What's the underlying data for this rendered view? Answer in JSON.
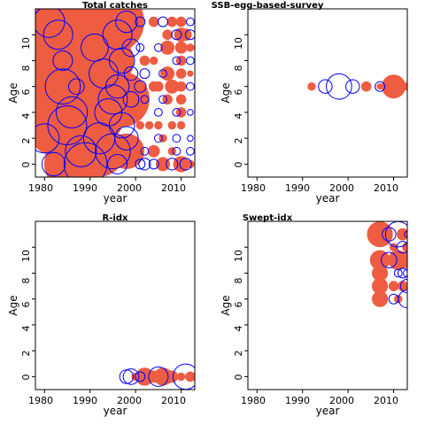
{
  "chart_data": [
    {
      "type": "scatter",
      "title": "Total catches",
      "xlabel": "year",
      "ylabel": "Age",
      "xlim": [
        1978,
        2013
      ],
      "ylim": [
        -1,
        12
      ],
      "xticks": [
        "1980",
        "1990",
        "2000",
        "2010"
      ],
      "yticks": [
        "0",
        "2",
        "4",
        "6",
        "8",
        "10"
      ],
      "marker_style": "bubble size = residual magnitude; red filled = positive, blue open = negative",
      "series": [
        {
          "name": "positive",
          "color": "#ee5c42",
          "filled": true,
          "points": [
            {
              "x": 1982,
              "y": 11,
              "r": 3.6
            },
            {
              "x": 1986,
              "y": 10,
              "r": 4.2
            },
            {
              "x": 1989,
              "y": 8,
              "r": 4.2
            },
            {
              "x": 1985,
              "y": 6,
              "r": 3.8
            },
            {
              "x": 1983,
              "y": 3,
              "r": 3.2
            },
            {
              "x": 1990,
              "y": 4,
              "r": 3.6
            },
            {
              "x": 1986,
              "y": 0,
              "r": 2.8
            },
            {
              "x": 1995,
              "y": 11,
              "r": 3.2
            },
            {
              "x": 1994,
              "y": 8,
              "r": 2.6
            },
            {
              "x": 1997,
              "y": 5,
              "r": 2.8
            },
            {
              "x": 1992,
              "y": 1,
              "r": 2.6
            },
            {
              "x": 1980,
              "y": 9,
              "r": 2.8
            },
            {
              "x": 1998,
              "y": 1,
              "r": 1.8
            },
            {
              "x": 2004,
              "y": 11,
              "r": 0.5
            },
            {
              "x": 2004,
              "y": 8,
              "r": 0.4
            },
            {
              "x": 2002,
              "y": 8,
              "r": 0.5
            },
            {
              "x": 2004,
              "y": 6,
              "r": 0.5
            },
            {
              "x": 2005,
              "y": 6,
              "r": 0.5
            },
            {
              "x": 2001,
              "y": 3,
              "r": 0.4
            },
            {
              "x": 2003,
              "y": 3,
              "r": 0.4
            },
            {
              "x": 2005,
              "y": 3,
              "r": 0.4
            },
            {
              "x": 2004,
              "y": 1,
              "r": 0.6
            },
            {
              "x": 2006,
              "y": 0,
              "r": 0.7
            },
            {
              "x": 2008,
              "y": 11,
              "r": 0.5
            },
            {
              "x": 2007,
              "y": 10,
              "r": 0.5
            },
            {
              "x": 2007,
              "y": 9,
              "r": 0.7
            },
            {
              "x": 2007,
              "y": 7,
              "r": 0.7
            },
            {
              "x": 2008,
              "y": 6,
              "r": 0.7
            },
            {
              "x": 2007,
              "y": 5,
              "r": 0.5
            },
            {
              "x": 2008,
              "y": 3,
              "r": 0.4
            },
            {
              "x": 2006,
              "y": 2,
              "r": 0.4
            },
            {
              "x": 2008,
              "y": 1,
              "r": 0.4
            },
            {
              "x": 2010,
              "y": 11,
              "r": 0.5
            },
            {
              "x": 2010,
              "y": 10,
              "r": 0.7
            },
            {
              "x": 2011,
              "y": 10,
              "r": 0.6
            },
            {
              "x": 2010,
              "y": 9,
              "r": 0.6
            },
            {
              "x": 2010,
              "y": 8,
              "r": 0.5
            },
            {
              "x": 2010,
              "y": 7,
              "r": 0.5
            },
            {
              "x": 2010,
              "y": 6,
              "r": 0.5
            },
            {
              "x": 2010,
              "y": 5,
              "r": 0.5
            },
            {
              "x": 2010,
              "y": 4,
              "r": 0.5
            },
            {
              "x": 2010,
              "y": 3,
              "r": 0.4
            },
            {
              "x": 2010,
              "y": 0,
              "r": 0.8
            },
            {
              "x": 2012,
              "y": 0,
              "r": 0.4
            },
            {
              "x": 2012,
              "y": 9,
              "r": 0.4
            },
            {
              "x": 2012,
              "y": 7,
              "r": 0.3
            }
          ]
        },
        {
          "name": "negative",
          "color": "#0000ff",
          "filled": false,
          "points": [
            {
              "x": 1981,
              "y": 11,
              "r": 1.6
            },
            {
              "x": 1983,
              "y": 10,
              "r": 1.5
            },
            {
              "x": 1984,
              "y": 6,
              "r": 1.8
            },
            {
              "x": 1980,
              "y": 2,
              "r": 1.5
            },
            {
              "x": 1985,
              "y": 3,
              "r": 2.0
            },
            {
              "x": 1988,
              "y": 1,
              "r": 1.6
            },
            {
              "x": 1989,
              "y": 0,
              "r": 2.2
            },
            {
              "x": 1986,
              "y": 4,
              "r": 1.6
            },
            {
              "x": 1982,
              "y": 0,
              "r": 1.2
            },
            {
              "x": 1984,
              "y": 8,
              "r": 1.0
            },
            {
              "x": 1987,
              "y": 6,
              "r": 0.8
            },
            {
              "x": 1992,
              "y": 2,
              "r": 1.6
            },
            {
              "x": 1994,
              "y": 4,
              "r": 1.4
            },
            {
              "x": 1991,
              "y": 9,
              "r": 1.4
            },
            {
              "x": 1993,
              "y": 7,
              "r": 1.5
            },
            {
              "x": 1995,
              "y": 5,
              "r": 1.5
            },
            {
              "x": 1995,
              "y": 1,
              "r": 1.8
            },
            {
              "x": 1996,
              "y": 10,
              "r": 1.5
            },
            {
              "x": 1997,
              "y": 8,
              "r": 1.3
            },
            {
              "x": 1996,
              "y": 6,
              "r": 1.2
            },
            {
              "x": 1997,
              "y": 3,
              "r": 1.3
            },
            {
              "x": 1998,
              "y": 11,
              "r": 1.1
            },
            {
              "x": 1998,
              "y": 2,
              "r": 1.2
            },
            {
              "x": 1996,
              "y": 0,
              "r": 1.0
            },
            {
              "x": 1999,
              "y": 5,
              "r": 0.8
            },
            {
              "x": 1999,
              "y": 9,
              "r": 0.9
            },
            {
              "x": 1999,
              "y": 7,
              "r": 0.7
            },
            {
              "x": 2001,
              "y": 11,
              "r": 0.5
            },
            {
              "x": 2001,
              "y": 9,
              "r": 0.4
            },
            {
              "x": 2002,
              "y": 7,
              "r": 0.5
            },
            {
              "x": 2001,
              "y": 6,
              "r": 0.6
            },
            {
              "x": 2002,
              "y": 5,
              "r": 0.4
            },
            {
              "x": 2002,
              "y": 1,
              "r": 0.4
            },
            {
              "x": 2002,
              "y": 0,
              "r": 0.6
            },
            {
              "x": 2001,
              "y": 0,
              "r": 0.5
            },
            {
              "x": 2006,
              "y": 11,
              "r": 0.5
            },
            {
              "x": 2005,
              "y": 9,
              "r": 0.4
            },
            {
              "x": 2006,
              "y": 7,
              "r": 0.4
            },
            {
              "x": 2006,
              "y": 5,
              "r": 0.4
            },
            {
              "x": 2005,
              "y": 4,
              "r": 0.4
            },
            {
              "x": 2005,
              "y": 2,
              "r": 0.4
            },
            {
              "x": 2008,
              "y": 0,
              "r": 0.6
            },
            {
              "x": 2004,
              "y": 0,
              "r": 0.5
            },
            {
              "x": 2009,
              "y": 10,
              "r": 0.5
            },
            {
              "x": 2009,
              "y": 8,
              "r": 0.4
            },
            {
              "x": 2009,
              "y": 4,
              "r": 0.4
            },
            {
              "x": 2009,
              "y": 2,
              "r": 0.4
            },
            {
              "x": 2009,
              "y": 1,
              "r": 0.4
            },
            {
              "x": 2012,
              "y": 11,
              "r": 0.4
            },
            {
              "x": 2012,
              "y": 10,
              "r": 0.5
            },
            {
              "x": 2012,
              "y": 8,
              "r": 0.4
            },
            {
              "x": 2012,
              "y": 6,
              "r": 0.4
            },
            {
              "x": 2012,
              "y": 4,
              "r": 0.3
            },
            {
              "x": 2012,
              "y": 2,
              "r": 0.3
            },
            {
              "x": 2012,
              "y": 1,
              "r": 0.4
            },
            {
              "x": 2011,
              "y": 0,
              "r": 0.6
            }
          ]
        }
      ]
    },
    {
      "type": "scatter",
      "title": "SSB-egg-based-survey",
      "xlabel": "year",
      "ylabel": "Age",
      "xlim": [
        1978,
        2013
      ],
      "ylim": [
        -1,
        12
      ],
      "xticks": [
        "1980",
        "1990",
        "2000",
        "2010"
      ],
      "yticks": [
        "0",
        "2",
        "4",
        "6",
        "8",
        "10"
      ],
      "series": [
        {
          "name": "positive",
          "color": "#ee5c42",
          "filled": true,
          "points": [
            {
              "x": 1992,
              "y": 6,
              "r": 0.4
            },
            {
              "x": 2004,
              "y": 6,
              "r": 0.5
            },
            {
              "x": 2007,
              "y": 6,
              "r": 0.3
            },
            {
              "x": 2010,
              "y": 6,
              "r": 1.2
            },
            {
              "x": 2013,
              "y": 6,
              "r": 0.4
            }
          ]
        },
        {
          "name": "negative",
          "color": "#0000ff",
          "filled": false,
          "points": [
            {
              "x": 1995,
              "y": 6,
              "r": 0.7
            },
            {
              "x": 1998,
              "y": 6,
              "r": 1.3
            },
            {
              "x": 2001,
              "y": 6,
              "r": 0.7
            },
            {
              "x": 2007,
              "y": 6,
              "r": 0.5
            }
          ]
        }
      ]
    },
    {
      "type": "scatter",
      "title": "R-idx",
      "xlabel": "year",
      "ylabel": "Age",
      "xlim": [
        1978,
        2013
      ],
      "ylim": [
        -1,
        12
      ],
      "xticks": [
        "1980",
        "1990",
        "2000",
        "2010"
      ],
      "yticks": [
        "0",
        "2",
        "4",
        "6",
        "8",
        "10"
      ],
      "series": [
        {
          "name": "positive",
          "color": "#ee5c42",
          "filled": true,
          "points": [
            {
              "x": 2000,
              "y": 0,
              "r": 0.4
            },
            {
              "x": 2002,
              "y": 0,
              "r": 0.9
            },
            {
              "x": 2004,
              "y": 0,
              "r": 0.6
            },
            {
              "x": 2006,
              "y": 0,
              "r": 0.9
            },
            {
              "x": 2007,
              "y": 0,
              "r": 0.7
            },
            {
              "x": 2008,
              "y": 0,
              "r": 0.6
            },
            {
              "x": 2010,
              "y": 0,
              "r": 0.4
            },
            {
              "x": 2012,
              "y": 0,
              "r": 0.5
            },
            {
              "x": 2013,
              "y": 0,
              "r": 0.4
            }
          ]
        },
        {
          "name": "negative",
          "color": "#0000ff",
          "filled": false,
          "points": [
            {
              "x": 1998,
              "y": 0,
              "r": 0.7
            },
            {
              "x": 1999,
              "y": 0,
              "r": 0.8
            },
            {
              "x": 2001,
              "y": 0,
              "r": 0.5
            },
            {
              "x": 2005,
              "y": 0,
              "r": 1.0
            },
            {
              "x": 2011,
              "y": 0,
              "r": 1.3
            }
          ]
        }
      ]
    },
    {
      "type": "scatter",
      "title": "Swept-idx",
      "xlabel": "year",
      "ylabel": "Age",
      "xlim": [
        1978,
        2013
      ],
      "ylim": [
        -1,
        12
      ],
      "xticks": [
        "1980",
        "1990",
        "2000",
        "2010"
      ],
      "yticks": [
        "0",
        "2",
        "4",
        "6",
        "8",
        "10"
      ],
      "series": [
        {
          "name": "positive",
          "color": "#ee5c42",
          "filled": true,
          "points": [
            {
              "x": 2007,
              "y": 11,
              "r": 1.3
            },
            {
              "x": 2007,
              "y": 9,
              "r": 1.0
            },
            {
              "x": 2007,
              "y": 8,
              "r": 0.8
            },
            {
              "x": 2007,
              "y": 7,
              "r": 0.8
            },
            {
              "x": 2007,
              "y": 6,
              "r": 0.8
            },
            {
              "x": 2010,
              "y": 10,
              "r": 0.4
            },
            {
              "x": 2011,
              "y": 9,
              "r": 1.0
            },
            {
              "x": 2010,
              "y": 7,
              "r": 0.5
            },
            {
              "x": 2013,
              "y": 9,
              "r": 0.8
            },
            {
              "x": 2013,
              "y": 10,
              "r": 0.5
            },
            {
              "x": 2012,
              "y": 7,
              "r": 0.5
            },
            {
              "x": 2011,
              "y": 6,
              "r": 0.4
            },
            {
              "x": 2012,
              "y": 11,
              "r": 0.6
            }
          ]
        },
        {
          "name": "negative",
          "color": "#0000ff",
          "filled": false,
          "points": [
            {
              "x": 2009,
              "y": 11,
              "r": 0.7
            },
            {
              "x": 2011,
              "y": 11,
              "r": 1.3
            },
            {
              "x": 2009,
              "y": 9,
              "r": 0.8
            },
            {
              "x": 2012,
              "y": 10,
              "r": 0.6
            },
            {
              "x": 2011,
              "y": 8,
              "r": 0.4
            },
            {
              "x": 2012,
              "y": 8,
              "r": 0.5
            },
            {
              "x": 2013,
              "y": 8,
              "r": 0.4
            },
            {
              "x": 2013,
              "y": 7,
              "r": 0.7
            },
            {
              "x": 2010,
              "y": 6,
              "r": 0.5
            },
            {
              "x": 2013,
              "y": 6,
              "r": 0.9
            },
            {
              "x": 2013,
              "y": 11,
              "r": 0.3
            }
          ]
        }
      ]
    }
  ]
}
